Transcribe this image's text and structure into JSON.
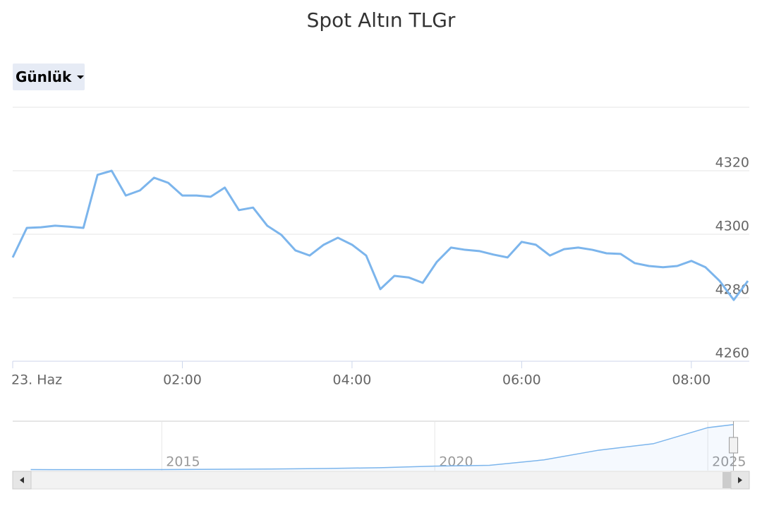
{
  "range_selector": "Günlük",
  "chart_data": [
    {
      "type": "line",
      "title": "Spot Altın TLGr",
      "x": [
        "00:00",
        "00:10",
        "00:20",
        "00:30",
        "00:40",
        "00:50",
        "01:00",
        "01:10",
        "01:20",
        "01:30",
        "01:40",
        "01:50",
        "02:00",
        "02:10",
        "02:20",
        "02:30",
        "02:40",
        "02:50",
        "03:00",
        "03:10",
        "03:20",
        "03:30",
        "03:40",
        "03:50",
        "04:00",
        "04:10",
        "04:20",
        "04:30",
        "04:40",
        "04:50",
        "05:00",
        "05:10",
        "05:20",
        "05:30",
        "05:40",
        "05:50",
        "06:00",
        "06:10",
        "06:20",
        "06:30",
        "06:40",
        "06:50",
        "07:00",
        "07:10",
        "07:20",
        "07:30",
        "07:40",
        "07:50",
        "08:00",
        "08:10",
        "08:20",
        "08:30",
        "08:40"
      ],
      "series": [
        {
          "color": "#7cb5ec",
          "values": [
            4292.7,
            4302.0,
            4302.2,
            4302.7,
            4302.4,
            4302.0,
            4318.7,
            4320.0,
            4312.2,
            4313.8,
            4317.8,
            4316.2,
            4312.2,
            4312.2,
            4311.8,
            4314.7,
            4307.6,
            4308.4,
            4302.7,
            4299.8,
            4294.9,
            4293.3,
            4296.7,
            4298.9,
            4296.7,
            4293.3,
            4282.7,
            4286.9,
            4286.4,
            4284.7,
            4291.3,
            4295.8,
            4295.1,
            4294.7,
            4293.6,
            4292.7,
            4297.6,
            4296.7,
            4293.3,
            4295.3,
            4295.8,
            4295.1,
            4294.0,
            4293.8,
            4290.9,
            4290.0,
            4289.6,
            4290.0,
            4291.6,
            4289.6,
            4285.3,
            4279.3,
            4285.3
          ]
        }
      ],
      "xlim": [
        "00:00",
        "08:41"
      ],
      "xticks": [
        {
          "value": "00:00",
          "label": "23. Haz"
        },
        "02:00",
        "04:00",
        "06:00",
        "08:00"
      ],
      "ylim": [
        4260,
        4340
      ],
      "yticks": [
        4260,
        4280,
        4300,
        4320
      ],
      "grid": true
    },
    {
      "type": "area",
      "x": [
        2012.6,
        2013,
        2014,
        2015,
        2016,
        2017,
        2018,
        2019,
        2020,
        2021,
        2022,
        2023,
        2024,
        2025,
        2025.47
      ],
      "series": [
        {
          "color": "#7cb5ec",
          "values": [
            95,
            90,
            88,
            100,
            120,
            150,
            200,
            270,
            420,
            490,
            1000,
            1900,
            2500,
            4000,
            4285
          ]
        }
      ],
      "xlim": [
        2012.27,
        2025.76
      ],
      "xticks": [
        2015,
        2020,
        2025
      ],
      "ylim": [
        0,
        4400
      ],
      "grid": true
    }
  ]
}
